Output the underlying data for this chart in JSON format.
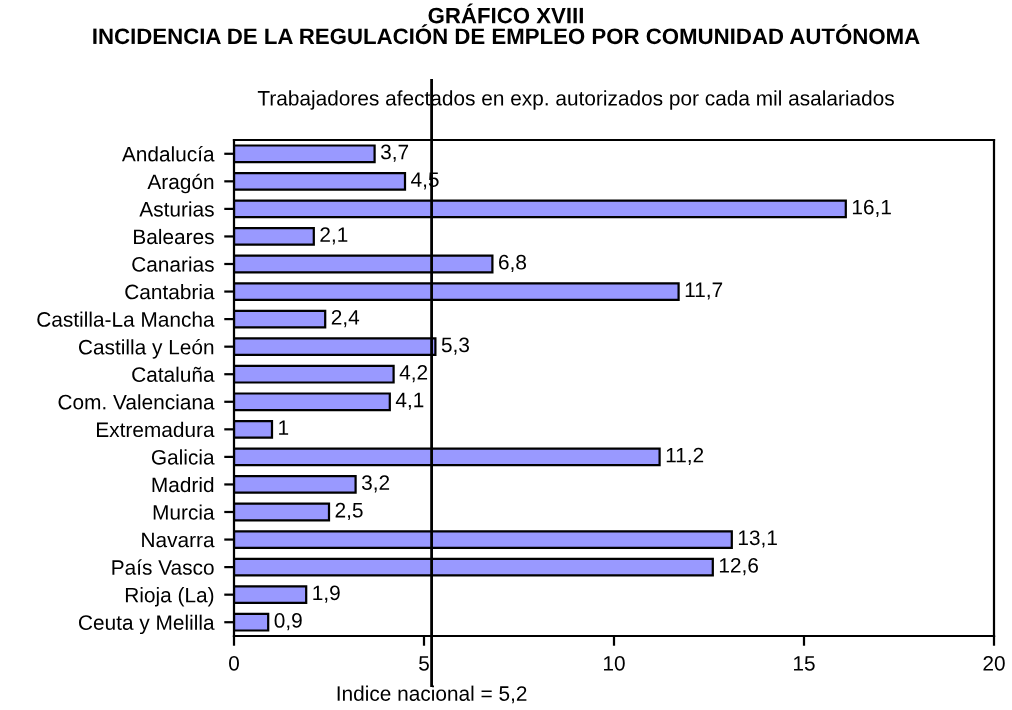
{
  "chart_data": {
    "type": "bar",
    "orientation": "horizontal",
    "title": "GRÁFICO XVIII\nINCIDENCIA DE LA REGULACIÓN DE EMPLEO POR COMUNIDAD AUTÓNOMA",
    "subtitle": "Trabajadores afectados en exp. autorizados por cada mil asalariados",
    "categories": [
      "Andalucía",
      "Aragón",
      "Asturias",
      "Baleares",
      "Canarias",
      "Cantabria",
      "Castilla-La Mancha",
      "Castilla y León",
      "Cataluña",
      "Com. Valenciana",
      "Extremadura",
      "Galicia",
      "Madrid",
      "Murcia",
      "Navarra",
      "País Vasco",
      "Rioja (La)",
      "Ceuta y Melilla"
    ],
    "values": [
      3.7,
      4.5,
      16.1,
      2.1,
      6.8,
      11.7,
      2.4,
      5.3,
      4.2,
      4.1,
      1,
      11.2,
      3.2,
      2.5,
      13.1,
      12.6,
      1.9,
      0.9
    ],
    "value_labels": [
      "3,7",
      "4,5",
      "16,1",
      "2,1",
      "6,8",
      "11,7",
      "2,4",
      "5,3",
      "4,2",
      "4,1",
      "1",
      "11,2",
      "3,2",
      "2,5",
      "13,1",
      "12,6",
      "1,9",
      "0,9"
    ],
    "color": "#9999ff",
    "xlim": [
      0,
      20
    ],
    "xticks": [
      0,
      5,
      10,
      15,
      20
    ],
    "grid": false,
    "ref_lines": [
      {
        "axis": "x",
        "value": 5.2,
        "label": "Indice nacional = 5,2",
        "color": "#000000"
      }
    ]
  }
}
